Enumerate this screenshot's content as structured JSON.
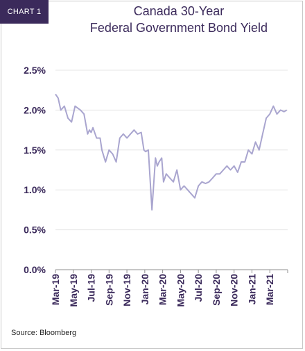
{
  "header": {
    "tag": "CHART 1",
    "title_line1": "Canada 30-Year",
    "title_line2": "Federal Government Bond Yield"
  },
  "footer": {
    "source": "Source: Bloomberg"
  },
  "chart_data": {
    "type": "line",
    "title": "Canada 30-Year Federal Government Bond Yield",
    "xlabel": "",
    "ylabel": "",
    "ylim": [
      0,
      2.5
    ],
    "yticks": [
      "0.0%",
      "0.5%",
      "1.0%",
      "1.5%",
      "2.0%",
      "2.5%"
    ],
    "xticks": [
      "Mar-19",
      "May-19",
      "Jul-19",
      "Sep-19",
      "Nov-19",
      "Jan-20",
      "Mar-20",
      "May-20",
      "Jul-20",
      "Sep-20",
      "Nov-20",
      "Jan-21",
      "Mar-21"
    ],
    "grid": true,
    "line_color": "#a9a5cf",
    "series": [
      {
        "x": [
          0,
          0.15,
          0.3,
          0.5,
          0.7,
          0.9,
          1.1,
          1.4,
          1.6,
          1.8,
          1.9,
          2.0,
          2.1,
          2.3,
          2.5,
          2.6,
          2.8,
          3.0,
          3.2,
          3.4,
          3.6,
          3.8,
          4.0,
          4.2,
          4.4,
          4.6,
          4.8,
          4.95,
          5.05,
          5.2,
          5.4,
          5.6,
          5.7,
          5.8,
          5.95,
          6.05,
          6.2,
          6.4,
          6.6,
          6.8,
          7.0,
          7.2,
          7.4,
          7.6,
          7.8,
          8.0,
          8.2,
          8.4,
          8.6,
          8.8,
          9.0,
          9.2,
          9.4,
          9.6,
          9.8,
          10.0,
          10.2,
          10.4,
          10.6,
          10.8,
          11.0,
          11.2,
          11.4,
          11.6,
          11.8,
          12.0,
          12.2,
          12.4,
          12.6,
          12.8,
          12.95
        ],
        "y": [
          2.2,
          2.15,
          2.0,
          2.05,
          1.9,
          1.85,
          2.05,
          2.0,
          1.95,
          1.7,
          1.75,
          1.72,
          1.78,
          1.65,
          1.65,
          1.5,
          1.35,
          1.5,
          1.45,
          1.35,
          1.65,
          1.7,
          1.65,
          1.7,
          1.75,
          1.7,
          1.72,
          1.5,
          1.48,
          1.5,
          0.75,
          1.4,
          1.3,
          1.35,
          1.4,
          1.1,
          1.2,
          1.15,
          1.1,
          1.25,
          1.0,
          1.05,
          1.0,
          0.95,
          0.9,
          1.05,
          1.1,
          1.08,
          1.1,
          1.15,
          1.2,
          1.2,
          1.25,
          1.3,
          1.25,
          1.3,
          1.22,
          1.35,
          1.35,
          1.5,
          1.45,
          1.6,
          1.5,
          1.7,
          1.9,
          1.95,
          2.05,
          1.95,
          2.0,
          1.98,
          2.0
        ]
      }
    ]
  }
}
